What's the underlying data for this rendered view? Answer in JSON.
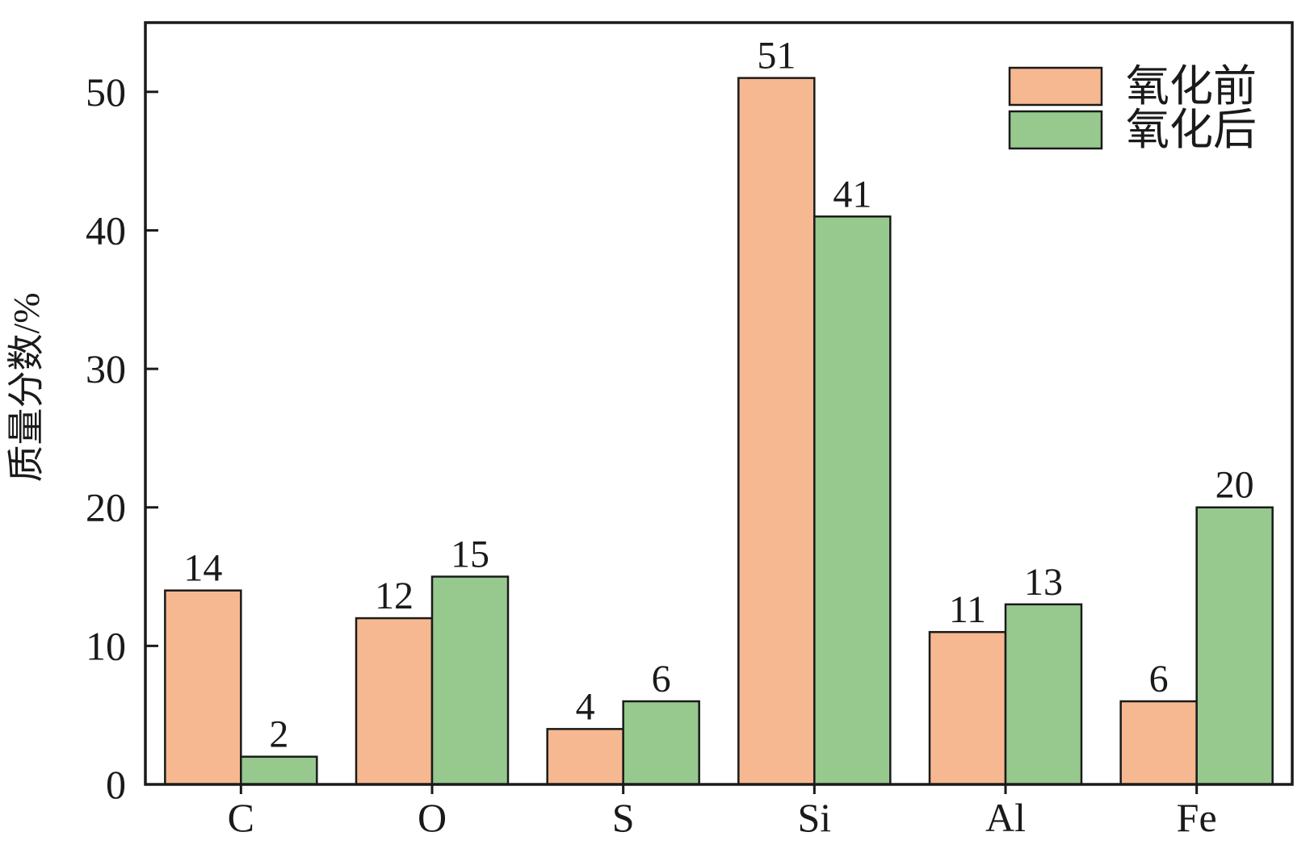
{
  "chart_data": {
    "type": "bar",
    "title": "",
    "xlabel": "",
    "ylabel": "质量分数/%",
    "categories": [
      "C",
      "O",
      "S",
      "Si",
      "Al",
      "Fe"
    ],
    "series": [
      {
        "name": "氧化前",
        "values": [
          14,
          12,
          4,
          51,
          11,
          6
        ],
        "color": "#F6B891"
      },
      {
        "name": "氧化后",
        "values": [
          2,
          15,
          6,
          41,
          13,
          20
        ],
        "color": "#97C98F"
      }
    ],
    "ylim": [
      0,
      55
    ],
    "yticks": [
      0,
      10,
      20,
      30,
      40,
      50
    ],
    "grid": false,
    "legend_position": "top-right",
    "data_labels": true
  }
}
